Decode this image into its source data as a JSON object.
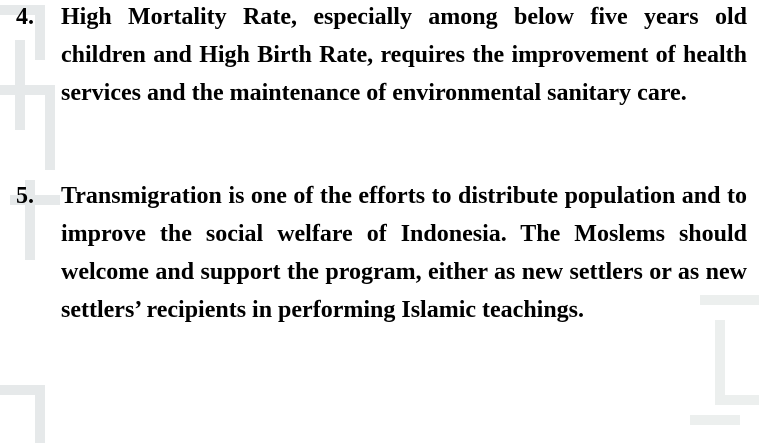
{
  "items": [
    {
      "number": "4.",
      "text": "High Mortality Rate, especially among below five years old children and High Birth Rate, requires the improvement of health services and the maintenance of environmental sanitary care."
    },
    {
      "number": "5.",
      "text": "Transmigration is one of the efforts to distribute population and to improve the social welfare of Indonesia. The Moslems should welcome and support the program, either as new settlers or as new settlers’ recipients in performing Islamic teachings."
    }
  ]
}
